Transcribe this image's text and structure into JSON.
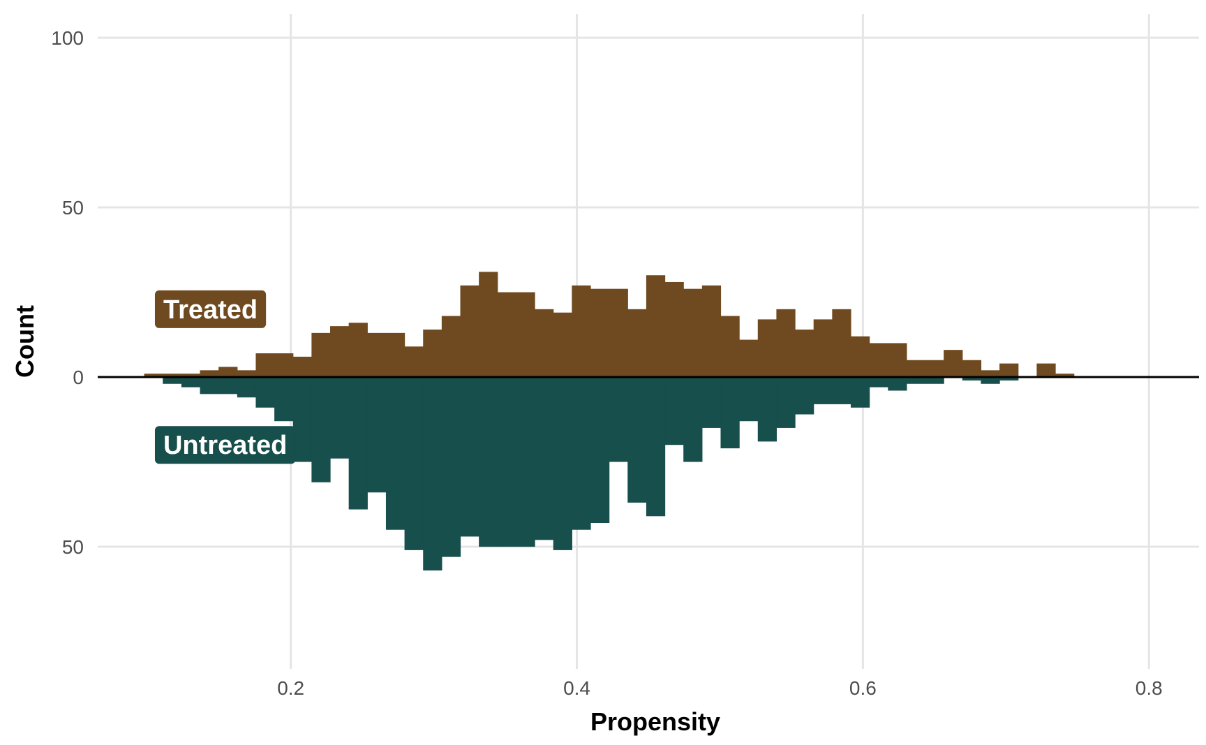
{
  "chart_data": {
    "type": "bar",
    "subtype": "mirrored-histogram",
    "xlabel": "Propensity",
    "ylabel": "Count",
    "xlim": [
      0.065,
      0.835
    ],
    "ylim": [
      -86,
      107
    ],
    "x_ticks": [
      {
        "value": 0.2,
        "label": "0.2"
      },
      {
        "value": 0.4,
        "label": "0.4"
      },
      {
        "value": 0.6,
        "label": "0.6"
      },
      {
        "value": 0.8,
        "label": "0.8"
      }
    ],
    "y_ticks": [
      {
        "value": 100,
        "label": "100"
      },
      {
        "value": 50,
        "label": "50"
      },
      {
        "value": 0,
        "label": "0"
      },
      {
        "value": -50,
        "label": "50"
      }
    ],
    "grid": true,
    "bin_start": 0.0975,
    "bin_width": 0.013,
    "series": [
      {
        "name": "Treated",
        "color": "#6f4a20",
        "direction": "up",
        "values": [
          1,
          1,
          1,
          2,
          3,
          2,
          7,
          7,
          6,
          13,
          15,
          16,
          13,
          13,
          9,
          14,
          18,
          27,
          31,
          25,
          25,
          20,
          19,
          27,
          26,
          26,
          20,
          30,
          28,
          26,
          27,
          18,
          11,
          17,
          20,
          14,
          17,
          20,
          12,
          10,
          10,
          5,
          5,
          8,
          5,
          2,
          4,
          0,
          4,
          1
        ]
      },
      {
        "name": "Untreated",
        "color": "#174f4c",
        "direction": "down",
        "values": [
          0,
          2,
          3,
          5,
          5,
          6,
          9,
          13,
          25,
          31,
          24,
          39,
          34,
          45,
          51,
          57,
          53,
          47,
          50,
          50,
          50,
          48,
          51,
          45,
          43,
          25,
          37,
          41,
          20,
          25,
          15,
          21,
          13,
          19,
          15,
          11,
          8,
          8,
          9,
          3,
          4,
          2,
          2,
          0,
          1,
          2,
          1,
          0,
          0,
          0
        ]
      }
    ],
    "annotations": [
      {
        "text": "Treated",
        "series": "Treated",
        "x": 0.105,
        "y": 20
      },
      {
        "text": "Untreated",
        "series": "Untreated",
        "x": 0.105,
        "y": -20
      }
    ]
  }
}
